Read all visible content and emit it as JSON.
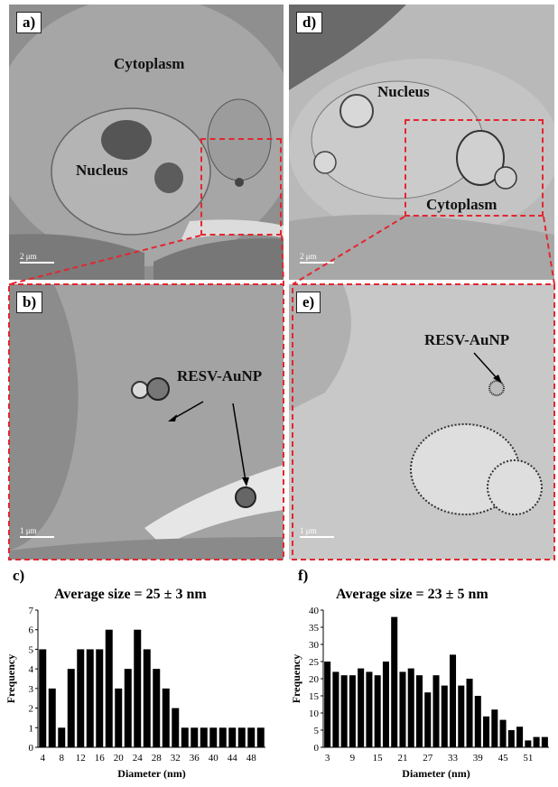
{
  "panels": {
    "a": {
      "letter": "a)",
      "labels": {
        "cytoplasm": "Cytoplasm",
        "nucleus": "Nucleus"
      },
      "scale": "2 μm"
    },
    "b": {
      "letter": "b)",
      "labels": {
        "np": "RESV-AuNP"
      },
      "scale": "1 μm"
    },
    "d": {
      "letter": "d)",
      "labels": {
        "nucleus": "Nucleus",
        "cytoplasm": "Cytoplasm"
      },
      "scale": "2 μm"
    },
    "e": {
      "letter": "e)",
      "labels": {
        "np": "RESV-AuNP"
      },
      "scale": "1 μm"
    }
  },
  "colors": {
    "zoom_box": "#e3262f",
    "tem_gray": "#9a9a9a",
    "bars": "#000000"
  },
  "chart_data": [
    {
      "id": "c",
      "letter": "c)",
      "type": "bar",
      "title": "Average size = 25 ± 3 nm",
      "xlabel": "Diameter (nm)",
      "ylabel": "Frequency",
      "ylim": [
        0,
        7
      ],
      "yticks": [
        0,
        1,
        2,
        3,
        4,
        5,
        6,
        7
      ],
      "xtick_labels": [
        "4",
        "8",
        "12",
        "16",
        "20",
        "24",
        "28",
        "32",
        "36",
        "40",
        "44",
        "48"
      ],
      "categories": [
        4,
        6,
        8,
        10,
        12,
        14,
        16,
        18,
        20,
        22,
        24,
        26,
        28,
        30,
        32,
        34,
        36,
        38,
        40,
        42,
        44,
        46,
        48,
        50
      ],
      "values": [
        5,
        3,
        1,
        4,
        5,
        5,
        5,
        6,
        3,
        4,
        6,
        5,
        4,
        3,
        2,
        1,
        1,
        1,
        1,
        1,
        1,
        1,
        1,
        1
      ]
    },
    {
      "id": "f",
      "letter": "f)",
      "type": "bar",
      "title": "Average size = 23 ± 5 nm",
      "xlabel": "Diameter (nm)",
      "ylabel": "Frequency",
      "ylim": [
        0,
        40
      ],
      "yticks": [
        0,
        5,
        10,
        15,
        20,
        25,
        30,
        35,
        40
      ],
      "xtick_labels": [
        "3",
        "9",
        "15",
        "21",
        "27",
        "33",
        "39",
        "45",
        "51"
      ],
      "categories": [
        3,
        5,
        7,
        9,
        11,
        13,
        15,
        17,
        19,
        21,
        23,
        25,
        27,
        29,
        31,
        33,
        35,
        37,
        39,
        41,
        43,
        45,
        47,
        49,
        51,
        53,
        55
      ],
      "values": [
        25,
        22,
        21,
        21,
        23,
        22,
        21,
        25,
        38,
        22,
        23,
        21,
        16,
        21,
        18,
        27,
        18,
        20,
        15,
        9,
        11,
        8,
        5,
        6,
        2,
        3,
        3
      ]
    }
  ]
}
